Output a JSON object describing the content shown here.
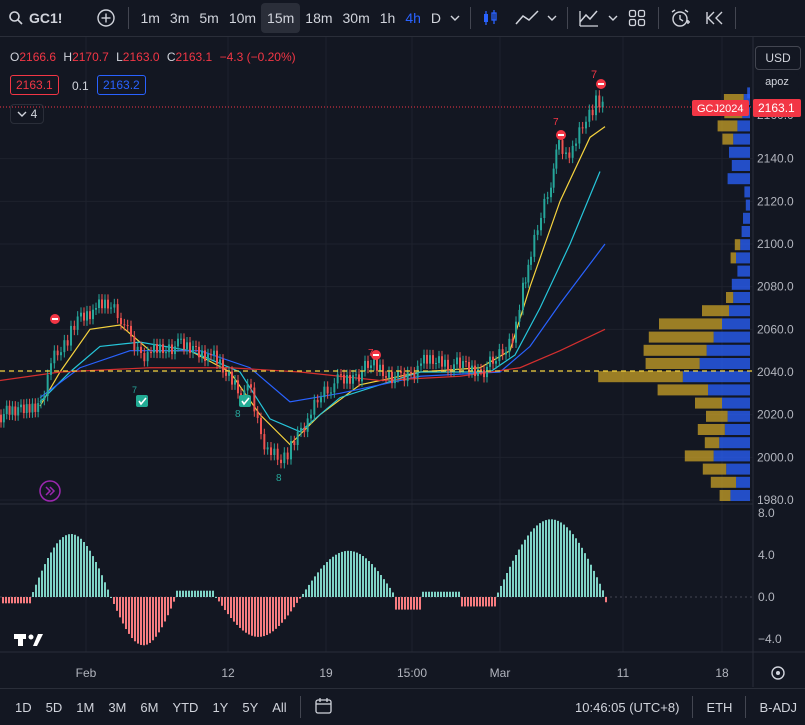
{
  "toolbar": {
    "symbol": "GC1!",
    "intervals": [
      "1m",
      "3m",
      "5m",
      "10m",
      "15m",
      "18m",
      "30m",
      "1h",
      "4h",
      "D"
    ],
    "active_interval": "15m",
    "highlight_interval": "4h"
  },
  "legend": {
    "o_label": "O",
    "o_value": "2166.6",
    "h_label": "H",
    "h_value": "2170.7",
    "l_label": "L",
    "l_value": "2163.0",
    "c_label": "C",
    "c_value": "2163.1",
    "change": "−4.3 (−0.20%)",
    "bid": "2163.1",
    "spread": "0.1",
    "ask": "2163.2",
    "collapse_count": "4"
  },
  "right_controls": {
    "currency": "USD",
    "mode": "apoz"
  },
  "price_axis": {
    "ticks": [
      "2140.0",
      "2120.0",
      "2100.0",
      "2080.0",
      "2060.0",
      "2040.0",
      "2020.0",
      "2000.0",
      "1980.0"
    ],
    "partial_top": "2160.0",
    "current_symbol": "GCJ2024",
    "current_price": "2163.1"
  },
  "osc_axis": {
    "ticks": [
      "8.0",
      "4.0",
      "0.0",
      "−4.0"
    ]
  },
  "time_axis": {
    "labels": [
      "Feb",
      "12",
      "19",
      "15:00",
      "Mar",
      "11",
      "18"
    ]
  },
  "markers": {
    "seven": "7",
    "eight": "8",
    "eight_rot": "8",
    "seven_sub": "7"
  },
  "bottombar": {
    "ranges": [
      "1D",
      "5D",
      "1M",
      "3M",
      "6M",
      "YTD",
      "1Y",
      "5Y",
      "All"
    ],
    "time": "10:46:05 (UTC+8)",
    "session": "ETH",
    "adjust": "B-ADJ"
  },
  "colors": {
    "bg": "#131722",
    "up": "#26a69a",
    "down": "#ef5350",
    "ema_yellow": "#f5d33e",
    "ema_cyan": "#26c6da",
    "ema_blue": "#2962ff",
    "ema_red": "#d32f2f",
    "vp_blue": "#2962ff",
    "vp_gold": "#c9a227"
  }
}
